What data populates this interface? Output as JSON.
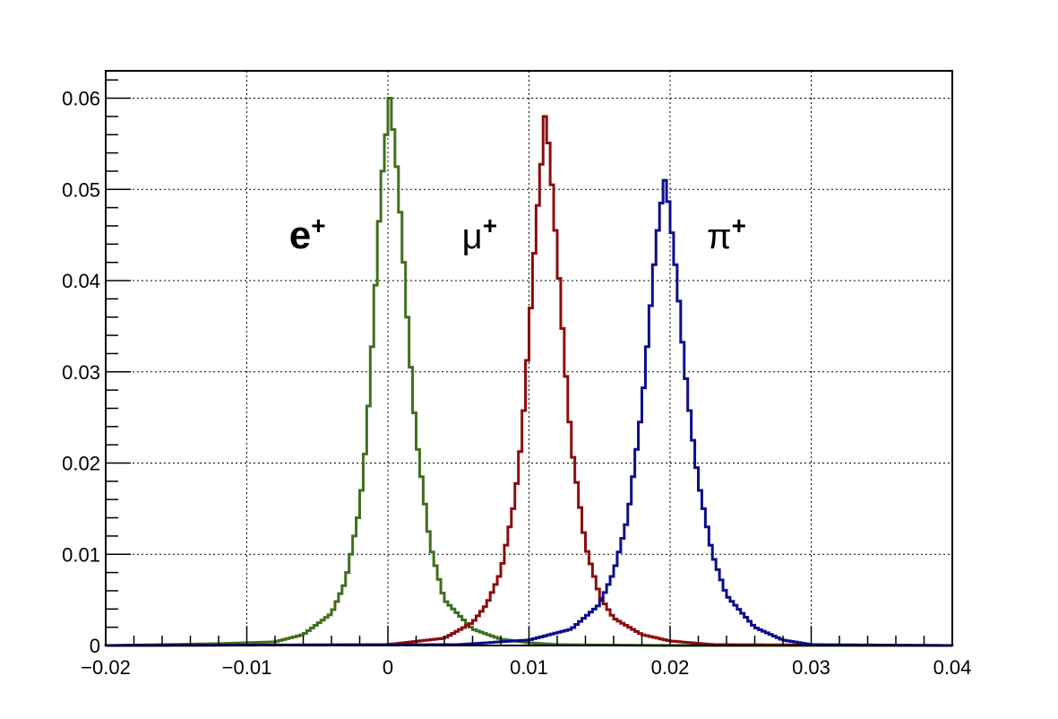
{
  "chart_data": {
    "type": "line",
    "style": "step-histogram",
    "title": "",
    "xlabel": "",
    "ylabel": "",
    "xlim": [
      -0.02,
      0.04
    ],
    "ylim": [
      0,
      0.063
    ],
    "grid": true,
    "x_ticks": [
      "−0.02",
      "−0.01",
      "0",
      "0.01",
      "0.02",
      "0.03",
      "0.04"
    ],
    "x_tick_values": [
      -0.02,
      -0.01,
      0,
      0.01,
      0.02,
      0.03,
      0.04
    ],
    "y_ticks": [
      "0",
      "0.01",
      "0.02",
      "0.03",
      "0.04",
      "0.05",
      "0.06"
    ],
    "y_tick_values": [
      0,
      0.01,
      0.02,
      0.03,
      0.04,
      0.05,
      0.06
    ],
    "series": [
      {
        "name": "e⁺",
        "label_base": "e",
        "label_sup": "+",
        "color": "#3f6f1f",
        "peak_x": 0.0001,
        "peak_y": 0.06,
        "x": [
          -0.02,
          -0.012,
          -0.008,
          -0.006,
          -0.004,
          -0.003,
          -0.002,
          -0.0015,
          -0.001,
          -0.0005,
          0.0,
          0.0001,
          0.0005,
          0.001,
          0.0015,
          0.002,
          0.003,
          0.004,
          0.006,
          0.008,
          0.01,
          0.012,
          0.02,
          0.04
        ],
        "y": [
          0.0,
          0.0002,
          0.0004,
          0.0012,
          0.0035,
          0.007,
          0.015,
          0.023,
          0.036,
          0.05,
          0.058,
          0.06,
          0.055,
          0.045,
          0.033,
          0.023,
          0.011,
          0.005,
          0.0018,
          0.0007,
          0.0003,
          0.0001,
          0.0,
          0.0
        ]
      },
      {
        "name": "μ⁺",
        "label_base": "μ",
        "label_sup": "+",
        "color": "#8b0d0d",
        "peak_x": 0.0112,
        "peak_y": 0.058,
        "x": [
          -0.02,
          0.0,
          0.004,
          0.006,
          0.007,
          0.008,
          0.009,
          0.0095,
          0.01,
          0.0105,
          0.011,
          0.0112,
          0.0115,
          0.012,
          0.0125,
          0.013,
          0.014,
          0.015,
          0.016,
          0.018,
          0.02,
          0.023,
          0.04
        ],
        "y": [
          0.0,
          0.0001,
          0.0008,
          0.0025,
          0.0045,
          0.008,
          0.016,
          0.023,
          0.034,
          0.046,
          0.055,
          0.058,
          0.053,
          0.043,
          0.032,
          0.022,
          0.011,
          0.0055,
          0.003,
          0.0012,
          0.0005,
          0.0001,
          0.0
        ]
      },
      {
        "name": "π⁺",
        "label_base": "π",
        "label_sup": "+",
        "color": "#0d0d8b",
        "peak_x": 0.0197,
        "peak_y": 0.051,
        "x": [
          -0.02,
          0.005,
          0.01,
          0.013,
          0.015,
          0.016,
          0.017,
          0.018,
          0.0185,
          0.019,
          0.0195,
          0.0197,
          0.02,
          0.0205,
          0.021,
          0.0215,
          0.022,
          0.023,
          0.024,
          0.026,
          0.028,
          0.03,
          0.04
        ],
        "y": [
          0.0,
          0.0001,
          0.0006,
          0.0018,
          0.0045,
          0.008,
          0.014,
          0.026,
          0.035,
          0.044,
          0.05,
          0.051,
          0.047,
          0.04,
          0.031,
          0.024,
          0.018,
          0.01,
          0.0055,
          0.002,
          0.0006,
          0.0001,
          0.0
        ]
      }
    ],
    "annotations": [
      {
        "text_base": "e",
        "text_sup": "+",
        "x": -0.0057,
        "y": 0.0455,
        "bold": true
      },
      {
        "text_base": "μ",
        "text_sup": "+",
        "x": 0.0065,
        "y": 0.0455,
        "bold": false
      },
      {
        "text_base": "π",
        "text_sup": "+",
        "x": 0.024,
        "y": 0.0455,
        "bold": false
      }
    ]
  }
}
